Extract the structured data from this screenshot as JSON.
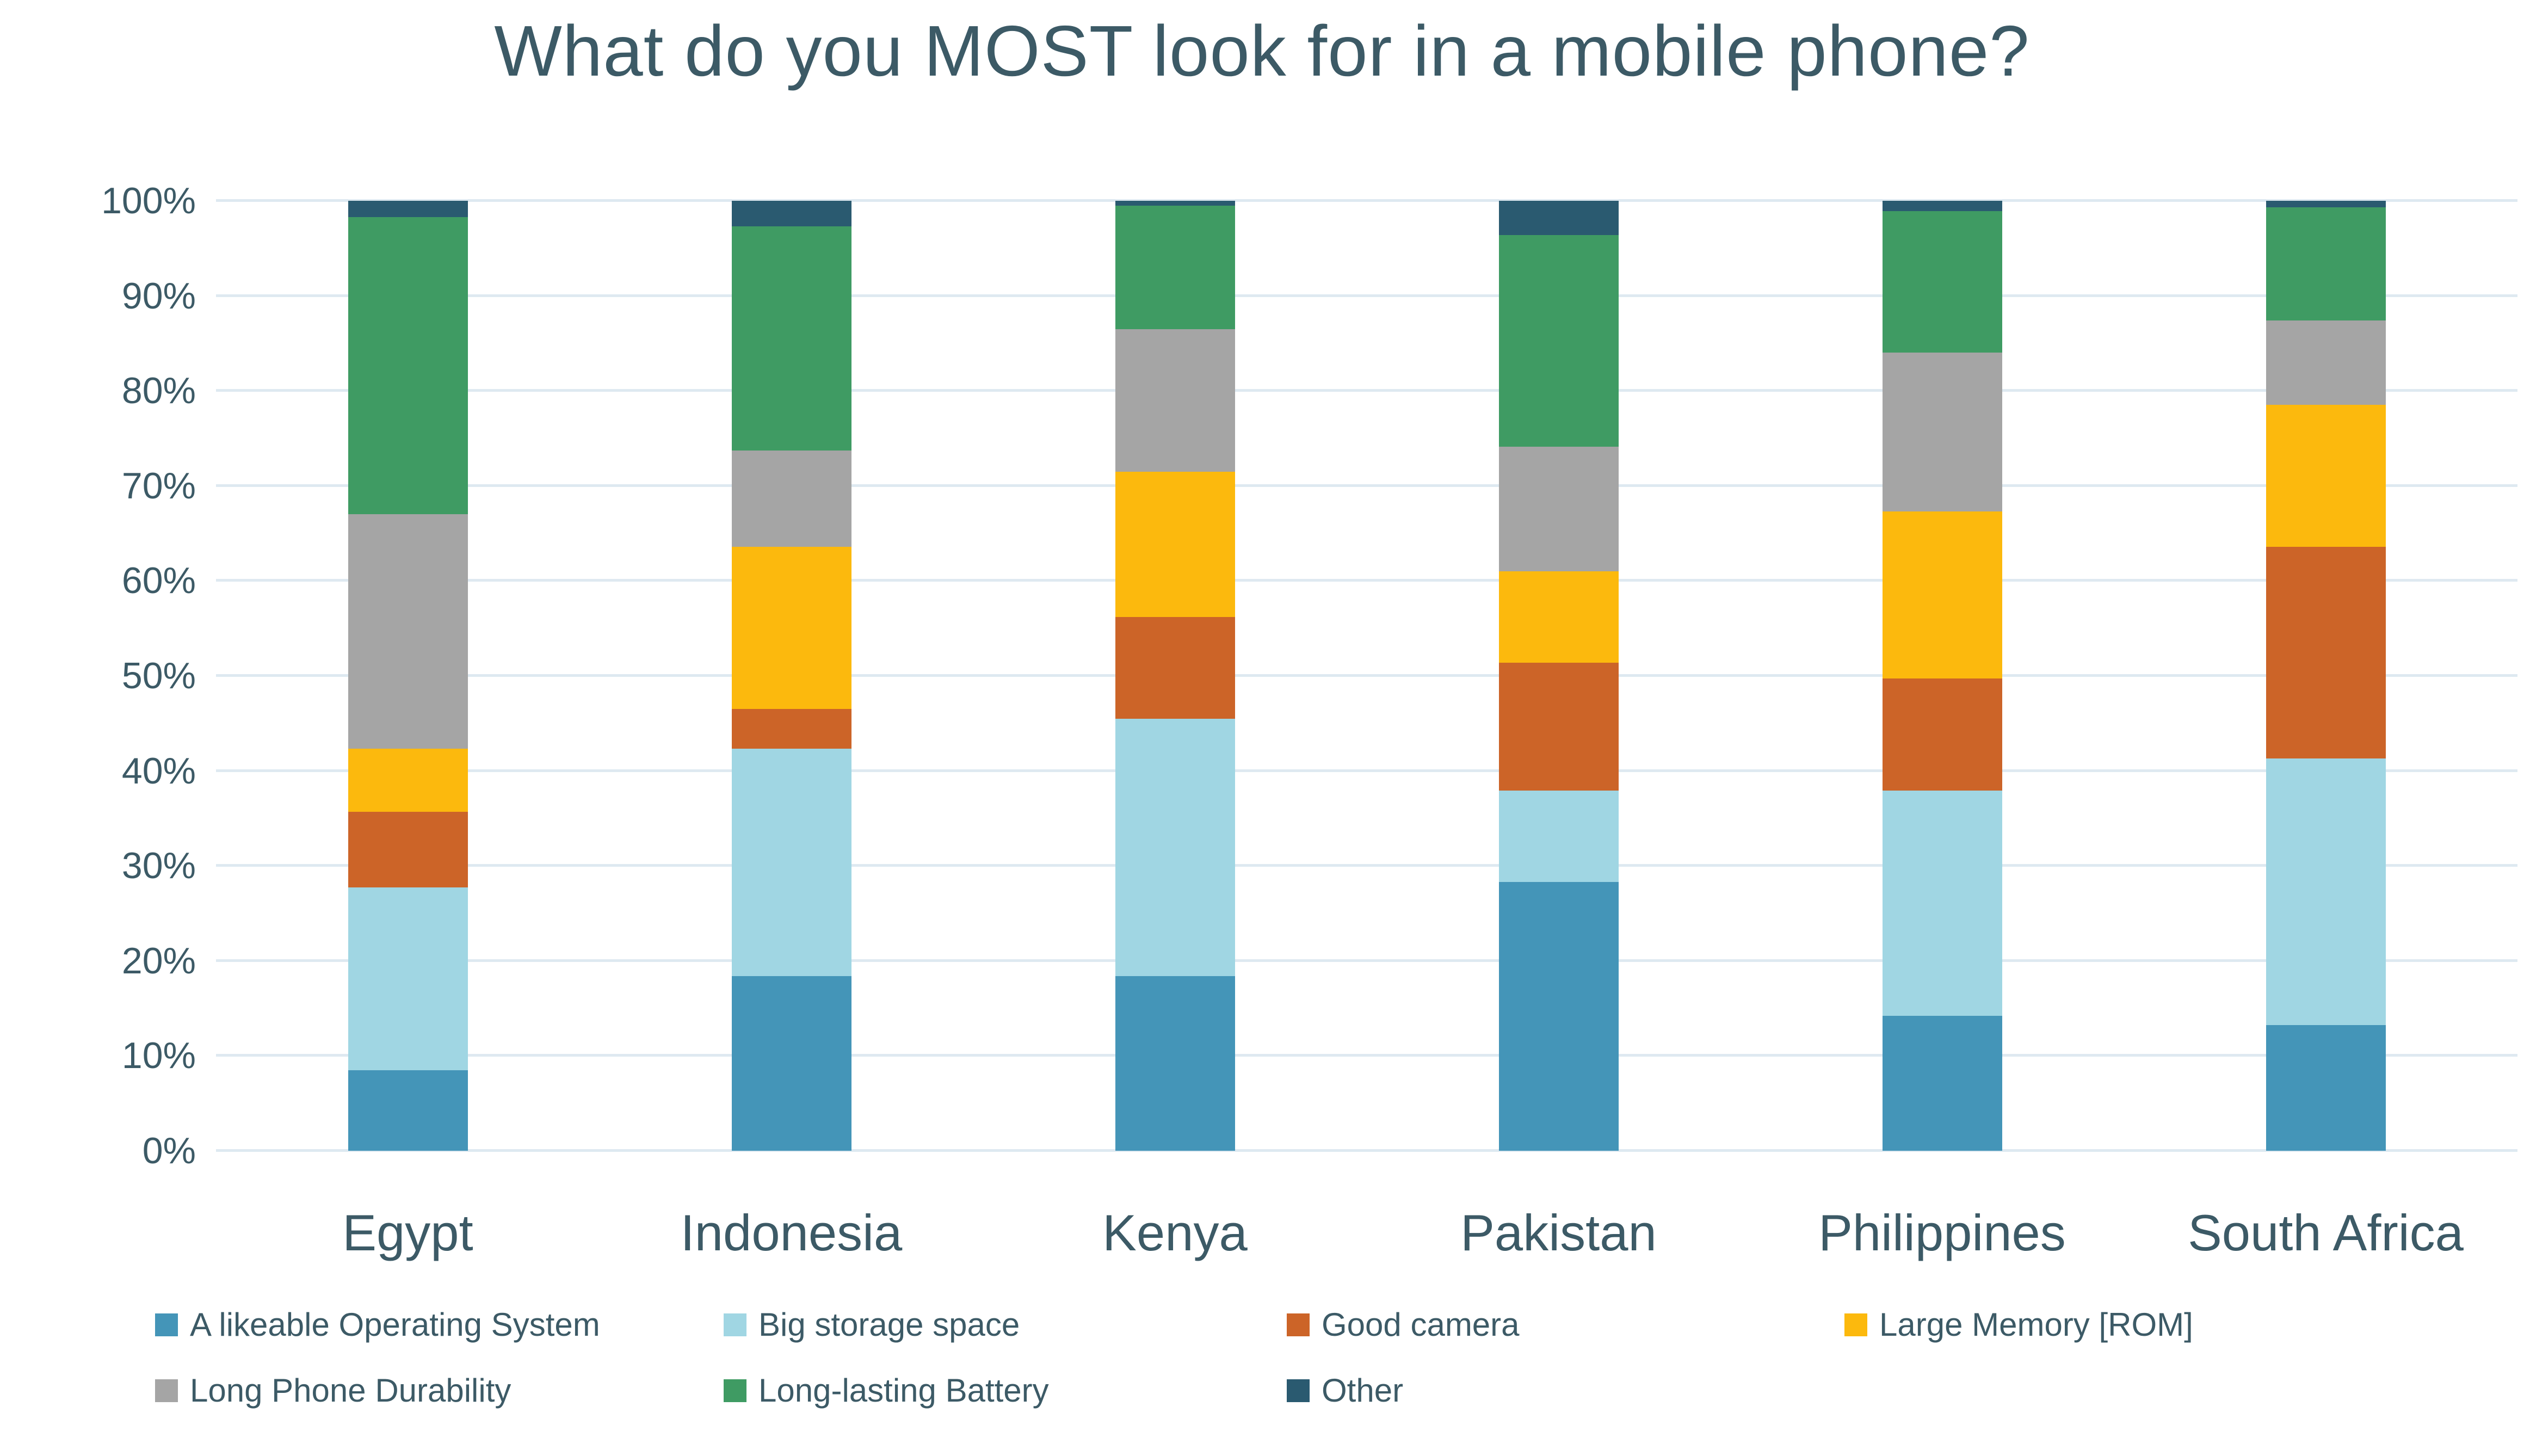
{
  "title": "What do you MOST look for in a mobile phone?",
  "text_color": "#3C5A66",
  "gridline_color": "#DEE9F1",
  "chart_data": {
    "type": "bar",
    "subtype": "stacked-100-percent",
    "title": "What do you MOST look for in a mobile phone?",
    "xlabel": "",
    "ylabel": "",
    "ylim": [
      0,
      100
    ],
    "grid": true,
    "legend_position": "bottom",
    "y_tick_labels": [
      "0%",
      "10%",
      "20%",
      "30%",
      "40%",
      "50%",
      "60%",
      "70%",
      "80%",
      "90%",
      "100%"
    ],
    "categories": [
      "Egypt",
      "Indonesia",
      "Kenya",
      "Pakistan",
      "Philippines",
      "South Africa"
    ],
    "series": [
      {
        "name": "A likeable Operating System",
        "color": "#4495B8",
        "values": [
          8.5,
          18.4,
          18.4,
          28.3,
          14.2,
          13.2
        ]
      },
      {
        "name": "Big storage space",
        "color": "#A0D6E3",
        "values": [
          19.2,
          23.9,
          27.1,
          9.6,
          23.7,
          28.1
        ]
      },
      {
        "name": "Good camera",
        "color": "#CC6428",
        "values": [
          8.0,
          4.2,
          10.7,
          13.5,
          11.8,
          22.3
        ]
      },
      {
        "name": "Large Memory [ROM]",
        "color": "#FCB90D",
        "values": [
          6.6,
          17.1,
          15.3,
          9.6,
          17.6,
          14.9
        ]
      },
      {
        "name": "Long Phone Durability",
        "color": "#A5A5A5",
        "values": [
          24.7,
          10.1,
          15.0,
          13.1,
          16.7,
          8.9
        ]
      },
      {
        "name": "Long-lasting Battery",
        "color": "#3F9B63",
        "values": [
          31.3,
          23.6,
          13.0,
          22.3,
          14.9,
          11.9
        ]
      },
      {
        "name": "Other",
        "color": "#2A5A70",
        "values": [
          1.7,
          2.7,
          0.5,
          3.6,
          1.1,
          0.7
        ]
      }
    ],
    "legend_rows": [
      [
        0,
        1,
        2,
        3
      ],
      [
        4,
        5,
        6
      ]
    ]
  }
}
